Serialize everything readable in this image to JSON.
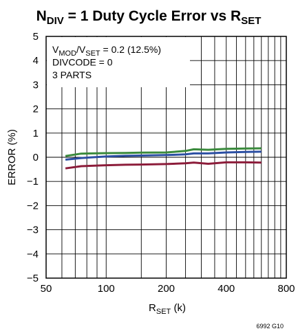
{
  "chart_data": {
    "type": "line",
    "title": {
      "main": "N",
      "main_sub": "DIV",
      "rest": " = 1 Duty Cycle Error vs R",
      "rest_sub": "SET"
    },
    "xlabel": {
      "main": "R",
      "sub": "SET",
      "rest": " (k)"
    },
    "ylabel": "ERROR (%)",
    "x_scale": "log",
    "xlim": [
      50,
      800
    ],
    "ylim": [
      -5,
      5
    ],
    "x_ticks": [
      50,
      100,
      200,
      400,
      800
    ],
    "x_tick_labels": [
      "50",
      "100",
      "200",
      "400",
      "800"
    ],
    "y_ticks": [
      5,
      4,
      3,
      2,
      1,
      0,
      -1,
      -2,
      -3,
      -4,
      -5
    ],
    "y_tick_labels": [
      "5",
      "4",
      "3",
      "2",
      "1",
      "0",
      "−1",
      "−2",
      "−3",
      "−4",
      "−5"
    ],
    "grid": true,
    "annotations": [
      {
        "parts": [
          {
            "t": "V"
          },
          {
            "t": "MOD",
            "sub": true
          },
          {
            "t": "/V"
          },
          {
            "t": "SET",
            "sub": true
          },
          {
            "t": " = 0.2 (12.5%)"
          }
        ]
      },
      {
        "parts": [
          {
            "t": "DIVCODE = 0"
          }
        ]
      },
      {
        "parts": [
          {
            "t": "3 PARTS"
          }
        ]
      }
    ],
    "series": [
      {
        "color": "#3a8a3c",
        "x": [
          62.5,
          75,
          100,
          125,
          150,
          200,
          250,
          275,
          325,
          400,
          500,
          600
        ],
        "y": [
          0.05,
          0.15,
          0.17,
          0.18,
          0.19,
          0.2,
          0.26,
          0.33,
          0.31,
          0.35,
          0.36,
          0.37
        ]
      },
      {
        "color": "#2b4fa3",
        "x": [
          62.5,
          75,
          100,
          125,
          150,
          200,
          250,
          275,
          325,
          400,
          500,
          600
        ],
        "y": [
          -0.1,
          -0.03,
          0.03,
          0.06,
          0.07,
          0.09,
          0.12,
          0.16,
          0.16,
          0.2,
          0.22,
          0.23
        ]
      },
      {
        "color": "#8c1c3a",
        "x": [
          62.5,
          75,
          100,
          125,
          150,
          200,
          250,
          275,
          325,
          400,
          500,
          600
        ],
        "y": [
          -0.46,
          -0.37,
          -0.33,
          -0.31,
          -0.3,
          -0.28,
          -0.25,
          -0.22,
          -0.27,
          -0.21,
          -0.21,
          -0.22
        ]
      }
    ],
    "footnote": "6992 G10"
  }
}
